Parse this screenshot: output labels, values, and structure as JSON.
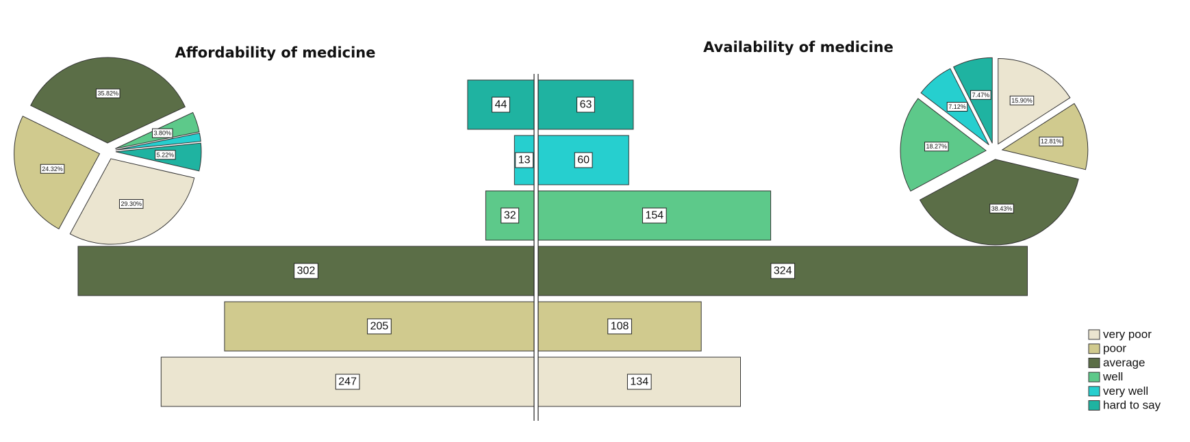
{
  "chart_data": {
    "type": "bar",
    "categories": [
      "very poor",
      "poor",
      "average",
      "well",
      "very well",
      "hard to say"
    ],
    "colors": [
      "#ebe5d0",
      "#d0ca8e",
      "#5b6e47",
      "#5dc98a",
      "#26cfcf",
      "#1fb3a1"
    ],
    "series": [
      {
        "name": "Affordability of medicine",
        "values": [
          247,
          205,
          302,
          32,
          13,
          44
        ],
        "percent_labels": [
          "29.30%",
          "24.32%",
          "35.82%",
          "",
          "",
          "5.22%"
        ],
        "percent_label_visible_for_well": "3.80%"
      },
      {
        "name": "Availability of medicine",
        "values": [
          134,
          108,
          324,
          154,
          60,
          63
        ],
        "percent_labels": [
          "15.90%",
          "12.81%",
          "38.43%",
          "18.27%",
          "7.12%",
          "7.47%"
        ]
      }
    ],
    "legend": {
      "position": "bottom-right",
      "entries": [
        "very poor",
        "poor",
        "average",
        "well",
        "very well",
        "hard to say"
      ]
    },
    "grid": false
  }
}
